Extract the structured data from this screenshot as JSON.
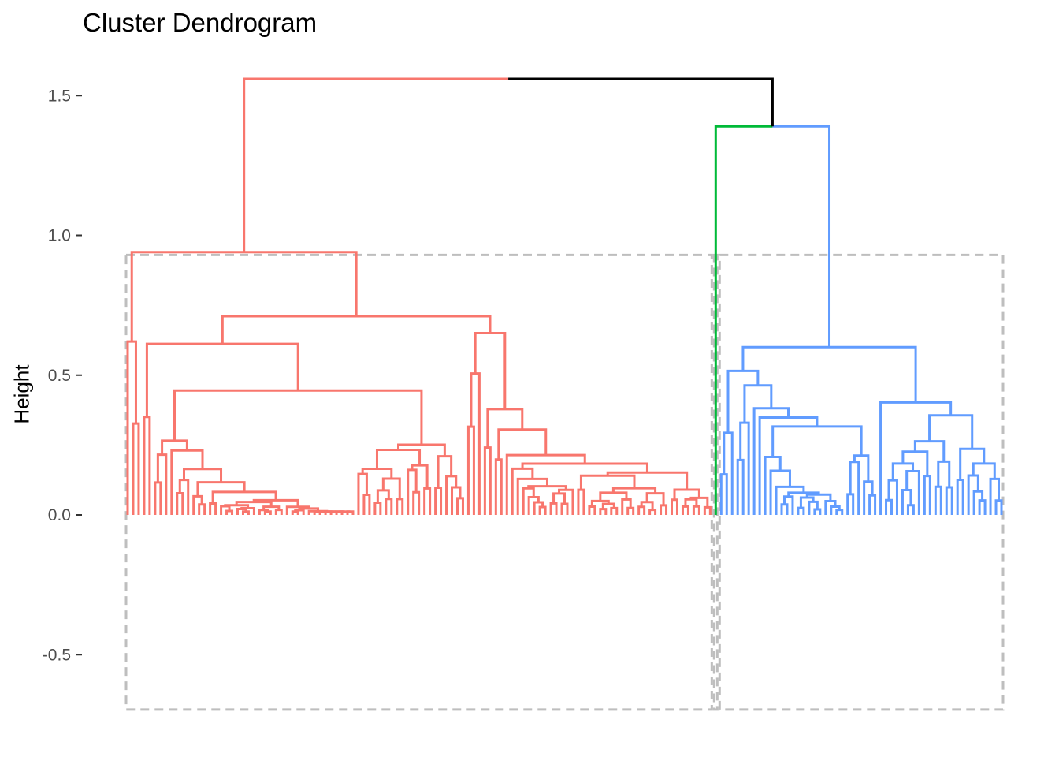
{
  "chart_data": {
    "type": "dendrogram",
    "title": "Cluster Dendrogram",
    "xlabel": "",
    "ylabel": "Height",
    "ylim": [
      -0.7,
      1.6
    ],
    "yticks": [
      {
        "value": 1.5,
        "label": "1.5"
      },
      {
        "value": 1.0,
        "label": "1.0"
      },
      {
        "value": 0.5,
        "label": "0.5"
      },
      {
        "value": 0.0,
        "label": "0.0"
      },
      {
        "value": -0.5,
        "label": "-0.5"
      }
    ],
    "grid": false,
    "n_clusters": 3,
    "clusters": [
      {
        "color": "#F8766D",
        "leaves": 107,
        "merge_height": 0.94
      },
      {
        "color": "#00BA38",
        "leaves": 1,
        "merge_height": 0.0
      },
      {
        "color": "#619CFF",
        "leaves": 52,
        "merge_height": 0.6
      }
    ],
    "top_merges": [
      {
        "height": 1.56,
        "between": [
          "cluster 1",
          "clusters 2+3"
        ]
      },
      {
        "height": 1.39,
        "between": [
          "cluster 2",
          "cluster 3"
        ]
      }
    ],
    "rect_box_height": 0.93,
    "rect_border_color": "#BEBEBE",
    "root_color": "#000000"
  }
}
